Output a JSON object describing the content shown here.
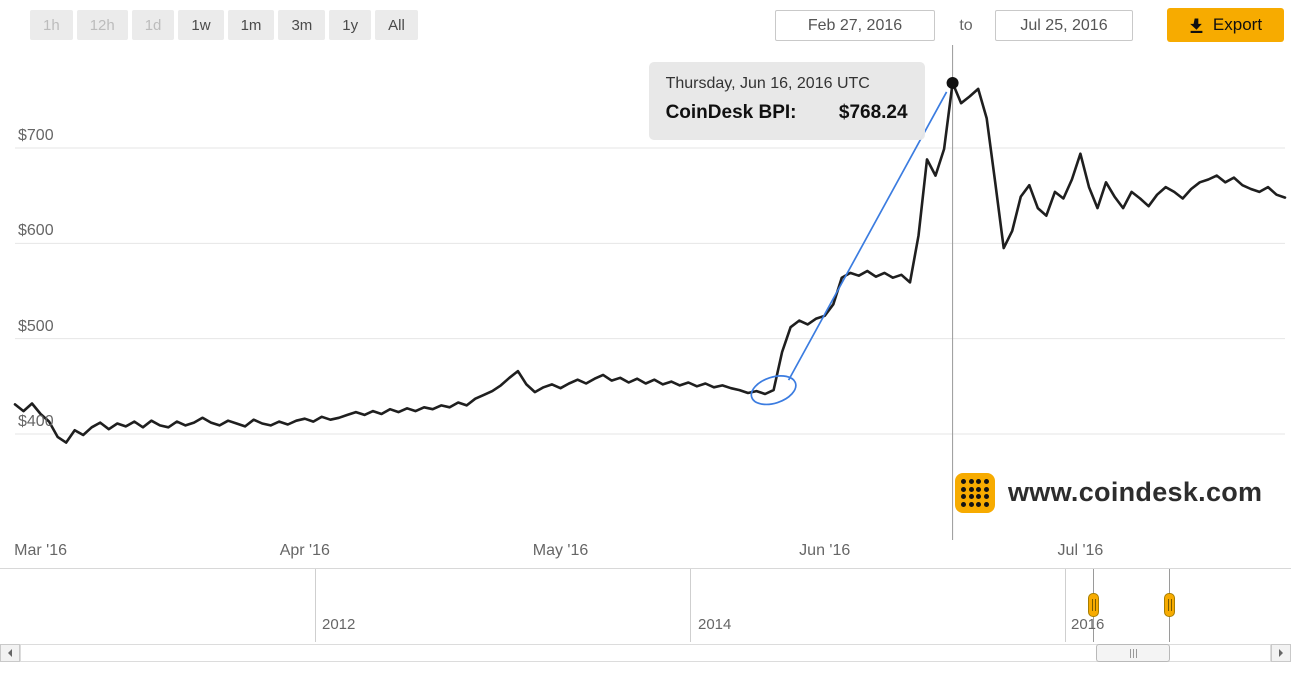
{
  "toolbar": {
    "ranges": [
      {
        "label": "1h",
        "enabled": false
      },
      {
        "label": "12h",
        "enabled": false
      },
      {
        "label": "1d",
        "enabled": false
      },
      {
        "label": "1w",
        "enabled": true
      },
      {
        "label": "1m",
        "enabled": true
      },
      {
        "label": "3m",
        "enabled": true
      },
      {
        "label": "1y",
        "enabled": true
      },
      {
        "label": "All",
        "enabled": true
      }
    ],
    "date_from": "Feb 27, 2016",
    "date_to_label": "to",
    "date_to": "Jul 25, 2016",
    "export_label": "Export"
  },
  "tooltip": {
    "date": "Thursday, Jun 16, 2016 UTC",
    "series_label": "CoinDesk BPI:",
    "value": "$768.24"
  },
  "watermark": {
    "text": "www.coindesk.com"
  },
  "navigator": {
    "year_labels": [
      "2012",
      "2014",
      "2016"
    ]
  },
  "icons": {
    "export": "download-arrow",
    "logo": "coindesk-dot-grid",
    "scroll_left": "left-arrow",
    "scroll_right": "right-arrow"
  },
  "colors": {
    "accent_yellow": "#f7ab00",
    "annotation_blue": "#3b7ce0",
    "line": "#1f1f1f",
    "tooltip_bg": "#e7e7e7"
  },
  "chart_data": {
    "type": "line",
    "title": "CoinDesk Bitcoin Price Index",
    "series_name": "CoinDesk BPI",
    "x_unit": "days since Feb 27, 2016",
    "x_range": [
      0,
      149
    ],
    "ylim": [
      380,
      800
    ],
    "grid": "horizontal",
    "yticks": [
      {
        "label": "$700",
        "value": 700
      },
      {
        "label": "$600",
        "value": 600
      },
      {
        "label": "$500",
        "value": 500
      },
      {
        "label": "$400",
        "value": 400
      }
    ],
    "xticks": [
      {
        "label": "Mar '16",
        "day": 3
      },
      {
        "label": "Apr '16",
        "day": 34
      },
      {
        "label": "May '16",
        "day": 64
      },
      {
        "label": "Jun '16",
        "day": 95
      },
      {
        "label": "Jul '16",
        "day": 125
      }
    ],
    "points": [
      [
        0,
        431
      ],
      [
        1,
        424
      ],
      [
        2,
        432
      ],
      [
        3,
        421
      ],
      [
        4,
        413
      ],
      [
        5,
        397
      ],
      [
        6,
        391
      ],
      [
        7,
        404
      ],
      [
        8,
        399
      ],
      [
        9,
        407
      ],
      [
        10,
        412
      ],
      [
        11,
        405
      ],
      [
        12,
        411
      ],
      [
        13,
        408
      ],
      [
        14,
        413
      ],
      [
        15,
        407
      ],
      [
        16,
        414
      ],
      [
        17,
        409
      ],
      [
        18,
        407
      ],
      [
        19,
        413
      ],
      [
        20,
        409
      ],
      [
        21,
        412
      ],
      [
        22,
        417
      ],
      [
        23,
        412
      ],
      [
        24,
        409
      ],
      [
        25,
        414
      ],
      [
        26,
        411
      ],
      [
        27,
        408
      ],
      [
        28,
        415
      ],
      [
        29,
        411
      ],
      [
        30,
        409
      ],
      [
        31,
        413
      ],
      [
        32,
        410
      ],
      [
        33,
        414
      ],
      [
        34,
        416
      ],
      [
        35,
        413
      ],
      [
        36,
        418
      ],
      [
        37,
        415
      ],
      [
        38,
        417
      ],
      [
        39,
        420
      ],
      [
        40,
        423
      ],
      [
        41,
        420
      ],
      [
        42,
        424
      ],
      [
        43,
        421
      ],
      [
        44,
        426
      ],
      [
        45,
        423
      ],
      [
        46,
        427
      ],
      [
        47,
        424
      ],
      [
        48,
        428
      ],
      [
        49,
        426
      ],
      [
        50,
        430
      ],
      [
        51,
        428
      ],
      [
        52,
        433
      ],
      [
        53,
        430
      ],
      [
        54,
        437
      ],
      [
        55,
        441
      ],
      [
        56,
        445
      ],
      [
        57,
        451
      ],
      [
        58,
        459
      ],
      [
        59,
        466
      ],
      [
        60,
        452
      ],
      [
        61,
        444
      ],
      [
        62,
        449
      ],
      [
        63,
        452
      ],
      [
        64,
        448
      ],
      [
        65,
        453
      ],
      [
        66,
        457
      ],
      [
        67,
        453
      ],
      [
        68,
        458
      ],
      [
        69,
        462
      ],
      [
        70,
        456
      ],
      [
        71,
        459
      ],
      [
        72,
        454
      ],
      [
        73,
        458
      ],
      [
        74,
        453
      ],
      [
        75,
        457
      ],
      [
        76,
        452
      ],
      [
        77,
        455
      ],
      [
        78,
        451
      ],
      [
        79,
        454
      ],
      [
        80,
        450
      ],
      [
        81,
        453
      ],
      [
        82,
        449
      ],
      [
        83,
        451
      ],
      [
        84,
        448
      ],
      [
        85,
        446
      ],
      [
        86,
        443
      ],
      [
        87,
        445
      ],
      [
        88,
        442
      ],
      [
        89,
        446
      ],
      [
        90,
        486
      ],
      [
        91,
        512
      ],
      [
        92,
        519
      ],
      [
        93,
        515
      ],
      [
        94,
        521
      ],
      [
        95,
        524
      ],
      [
        96,
        536
      ],
      [
        97,
        564
      ],
      [
        98,
        569
      ],
      [
        99,
        566
      ],
      [
        100,
        571
      ],
      [
        101,
        565
      ],
      [
        102,
        569
      ],
      [
        103,
        564
      ],
      [
        104,
        567
      ],
      [
        105,
        559
      ],
      [
        106,
        608
      ],
      [
        107,
        688
      ],
      [
        108,
        671
      ],
      [
        109,
        699
      ],
      [
        110,
        768.24
      ],
      [
        111,
        747
      ],
      [
        112,
        754
      ],
      [
        113,
        762
      ],
      [
        114,
        731
      ],
      [
        115,
        664
      ],
      [
        116,
        595
      ],
      [
        117,
        613
      ],
      [
        118,
        649
      ],
      [
        119,
        661
      ],
      [
        120,
        637
      ],
      [
        121,
        629
      ],
      [
        122,
        654
      ],
      [
        123,
        647
      ],
      [
        124,
        667
      ],
      [
        125,
        694
      ],
      [
        126,
        659
      ],
      [
        127,
        637
      ],
      [
        128,
        664
      ],
      [
        129,
        649
      ],
      [
        130,
        637
      ],
      [
        131,
        654
      ],
      [
        132,
        647
      ],
      [
        133,
        639
      ],
      [
        134,
        651
      ],
      [
        135,
        659
      ],
      [
        136,
        654
      ],
      [
        137,
        647
      ],
      [
        138,
        657
      ],
      [
        139,
        664
      ],
      [
        140,
        667
      ],
      [
        141,
        671
      ],
      [
        142,
        664
      ],
      [
        143,
        669
      ],
      [
        144,
        661
      ],
      [
        145,
        657
      ],
      [
        146,
        654
      ],
      [
        147,
        659
      ],
      [
        148,
        651
      ],
      [
        149,
        648
      ]
    ],
    "highlight": {
      "day": 110,
      "value": 768.24,
      "date": "Thursday, Jun 16, 2016 UTC"
    },
    "annotation": {
      "shape": "ellipse-with-line",
      "from_day": 89,
      "from_value": 446,
      "to_day": 110,
      "to_value": 768.24,
      "color": "#3b7ce0"
    }
  }
}
